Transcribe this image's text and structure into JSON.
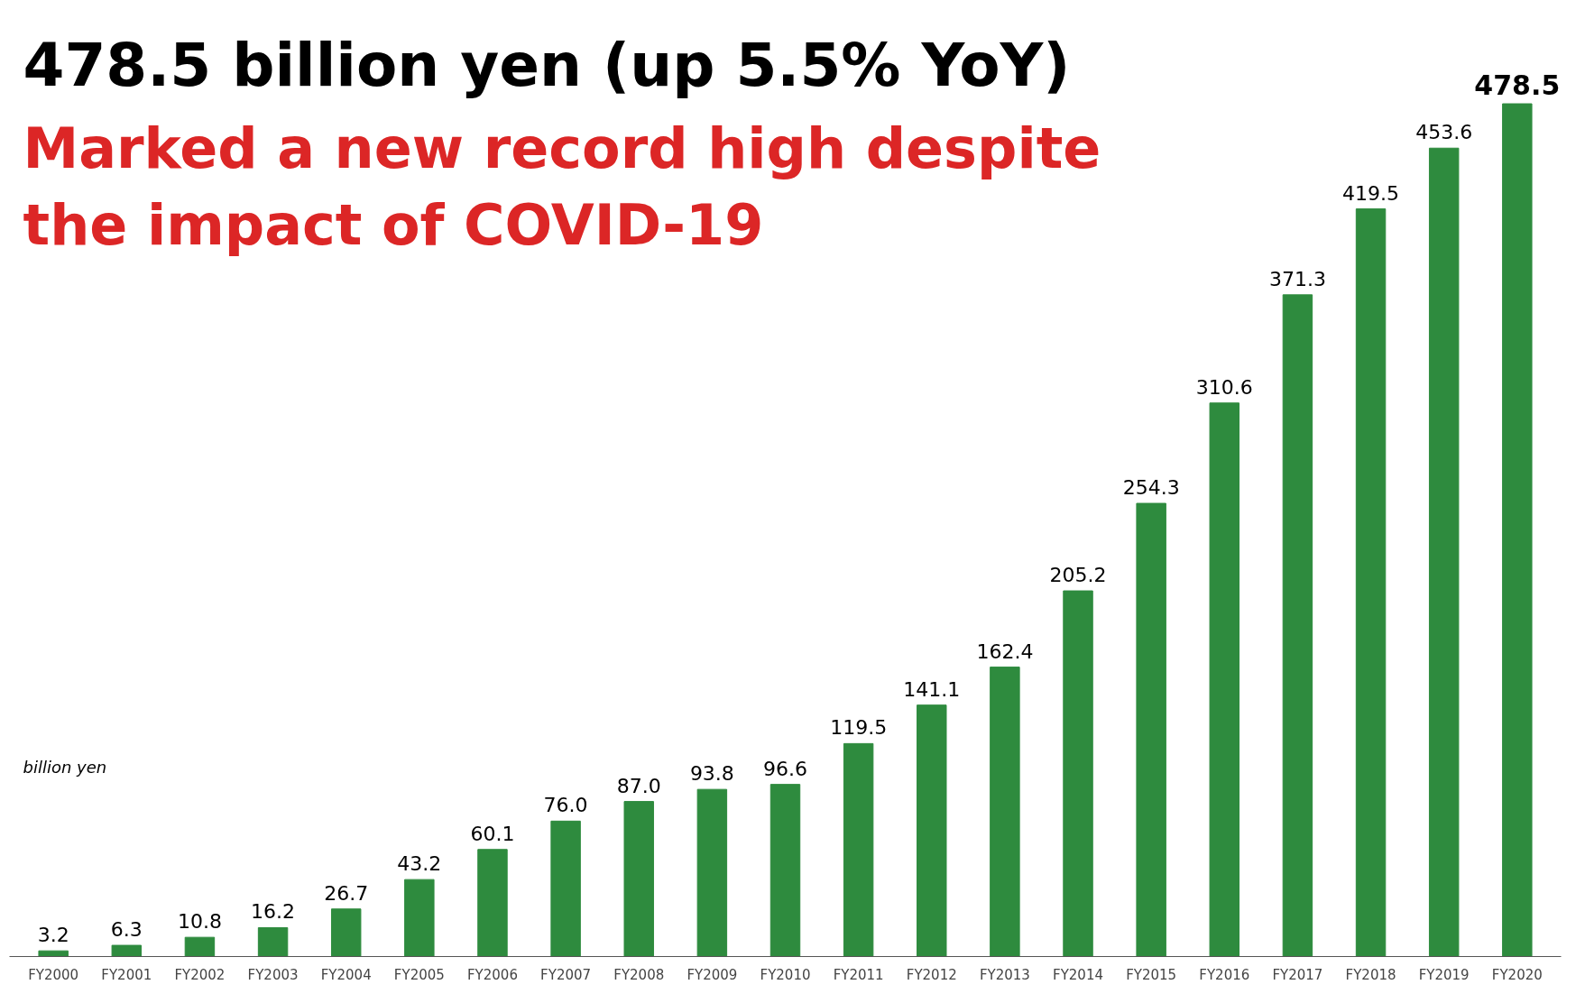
{
  "chart_data": {
    "type": "bar",
    "title": "478.5 billion yen (up 5.5% YoY)",
    "subtitle": "Marked a new record high despite the impact of COVID-19",
    "ylabel": "billion yen",
    "categories": [
      "FY2000",
      "FY2001",
      "FY2002",
      "FY2003",
      "FY2004",
      "FY2005",
      "FY2006",
      "FY2007",
      "FY2008",
      "FY2009",
      "FY2010",
      "FY2011",
      "FY2012",
      "FY2013",
      "FY2014",
      "FY2015",
      "FY2016",
      "FY2017",
      "FY2018",
      "FY2019",
      "FY2020"
    ],
    "values": [
      3.2,
      6.3,
      10.8,
      16.2,
      26.7,
      43.2,
      60.1,
      76.0,
      87.0,
      93.8,
      96.6,
      119.5,
      141.1,
      162.4,
      205.2,
      254.3,
      310.6,
      371.3,
      419.5,
      453.6,
      478.5
    ],
    "value_labels": [
      "3.2",
      "6.3",
      "10.8",
      "16.2",
      "26.7",
      "43.2",
      "60.1",
      "76.0",
      "87.0",
      "93.8",
      "96.6",
      "119.5",
      "141.1",
      "162.4",
      "205.2",
      "254.3",
      "310.6",
      "371.3",
      "419.5",
      "453.6",
      "478.5"
    ],
    "color": "#2e8b3e",
    "grid": false,
    "tick_labels": "x"
  }
}
